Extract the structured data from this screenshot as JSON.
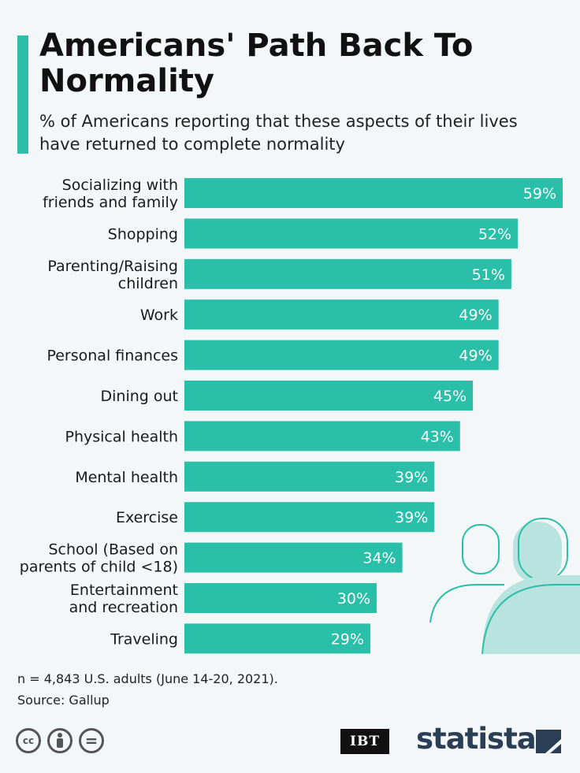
{
  "header": {
    "title": "Americans' Path Back To Normality",
    "subtitle": "% of Americans reporting that these aspects of their lives have returned to complete normality"
  },
  "chart_data": {
    "type": "bar",
    "orientation": "horizontal",
    "title": "Americans' Path Back To Normality",
    "unit": "%",
    "xlim": [
      0,
      59
    ],
    "bar_color": "#29bfa8",
    "categories": [
      [
        "Socializing with",
        "friends and family"
      ],
      [
        "Shopping"
      ],
      [
        "Parenting/Raising",
        "children"
      ],
      [
        "Work"
      ],
      [
        "Personal finances"
      ],
      [
        "Dining out"
      ],
      [
        "Physical health"
      ],
      [
        "Mental health"
      ],
      [
        "Exercise"
      ],
      [
        "School (Based on",
        "parents of child <18)"
      ],
      [
        "Entertainment",
        "and recreation"
      ],
      [
        "Traveling"
      ]
    ],
    "values": [
      59,
      52,
      51,
      49,
      49,
      45,
      43,
      39,
      39,
      34,
      30,
      29
    ]
  },
  "footer": {
    "sample_note": "n = 4,843 U.S. adults (June 14-20, 2021).",
    "source": "Source: Gallup",
    "license_icons": [
      "cc-icon",
      "attribution-icon",
      "no-derivatives-icon"
    ],
    "cc_label": "cc",
    "nd_label": "=",
    "partner_logo": "IBT",
    "brand": "statista"
  },
  "colors": {
    "accent": "#2bbfaa",
    "background": "#f4f7f8",
    "illustration": "#b9e3df"
  }
}
